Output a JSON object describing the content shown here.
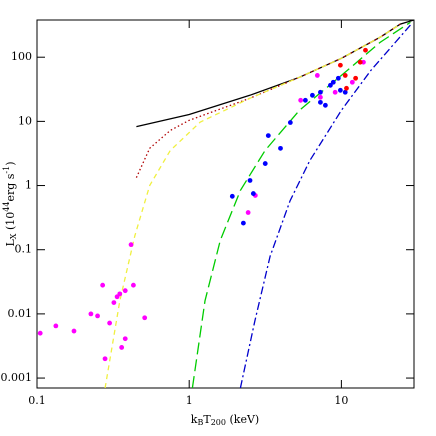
{
  "chart_data": {
    "type": "scatter",
    "xlabel": [
      "k",
      "B",
      "T",
      "200",
      " (keV)"
    ],
    "ylabel": [
      "L",
      "X",
      " (10",
      "44",
      "erg  s",
      "-1",
      ")"
    ],
    "xscale": "log",
    "yscale": "log",
    "xlim": [
      0.1,
      30
    ],
    "ylim": [
      0.0007,
      380
    ],
    "xticks": [
      0.1,
      1,
      10
    ],
    "yticks": [
      0.001,
      0.01,
      0.1,
      1,
      10,
      100
    ],
    "series": [
      {
        "kind": "line",
        "dash": "solid",
        "color": "#000000",
        "x": [
          0.45,
          1,
          2.5,
          5.3,
          10,
          18,
          24.4,
          30
        ],
        "values": [
          8.3,
          12.8,
          25.5,
          48.7,
          96,
          205,
          328,
          380
        ]
      },
      {
        "kind": "line",
        "dash": "dotted",
        "color": "#b00000",
        "x": [
          0.45,
          0.55,
          0.75,
          1,
          2.5,
          5.3,
          10,
          18,
          24.4
        ],
        "values": [
          1.33,
          3.8,
          7.2,
          10.4,
          22.9,
          48.7,
          96,
          205,
          328
        ]
      },
      {
        "kind": "line",
        "dash": "dashed",
        "color": "#f0f040",
        "x": [
          0.28,
          0.35,
          0.44,
          0.55,
          0.75,
          1.18,
          2.5,
          5.3,
          10,
          18,
          24.4
        ],
        "values": [
          0.0007,
          0.0159,
          0.166,
          1,
          3.5,
          9.7,
          22.9,
          48.7,
          96,
          205,
          328
        ]
      },
      {
        "kind": "line",
        "dash": "long-dashed",
        "color": "#00cc00",
        "x": [
          1.05,
          1.27,
          1.6,
          2.17,
          3.15,
          5.3,
          10,
          18,
          28.4
        ],
        "values": [
          0.0007,
          0.016,
          0.14,
          0.84,
          3.5,
          14.9,
          52,
          171,
          350
        ]
      },
      {
        "kind": "line",
        "dash": "dash-dot",
        "color": "#0000cc",
        "x": [
          2.17,
          2.7,
          3.4,
          4.6,
          6.2,
          10,
          15.6,
          28.4
        ],
        "values": [
          0.0007,
          0.0077,
          0.079,
          0.58,
          2.45,
          14.9,
          62,
          316
        ]
      },
      {
        "kind": "points",
        "color": "#ff00ff",
        "x": [
          0.105,
          0.133,
          0.175,
          0.226,
          0.25,
          0.28,
          0.3,
          0.32,
          0.336,
          0.35,
          0.36,
          0.38,
          0.38,
          0.415,
          0.43,
          0.51,
          0.27,
          2.44,
          2.72,
          5.4,
          6.95,
          7.28,
          9.1,
          11.8,
          13.96
        ],
        "values": [
          0.005,
          0.0065,
          0.0054,
          0.01,
          0.0093,
          0.002,
          0.0072,
          0.015,
          0.0185,
          0.0205,
          0.003,
          0.0041,
          0.023,
          0.12,
          0.028,
          0.0087,
          0.028,
          0.38,
          0.7,
          21.3,
          52,
          23.7,
          28.4,
          40.7,
          83.5
        ]
      },
      {
        "kind": "points",
        "color": "#0000ff",
        "x": [
          2.27,
          2.51,
          3.31,
          3.98,
          4.62,
          5.8,
          6.45,
          7.28,
          8.47,
          8.85,
          9.55,
          9.85,
          7.85,
          10.6,
          7.28,
          2.64,
          1.92,
          3.16
        ],
        "values": [
          0.26,
          1.2,
          6.0,
          3.8,
          9.6,
          21.3,
          25.5,
          28.4,
          36.5,
          40.7,
          47,
          30.5,
          17.8,
          28.4,
          19.8,
          0.75,
          0.68,
          2.2
        ]
      },
      {
        "kind": "points",
        "color": "#ff0000",
        "x": [
          10.8,
          12.4,
          10.6,
          13.3,
          14.4,
          9.85
        ],
        "values": [
          32.8,
          47,
          52,
          83.5,
          128.5,
          75
        ]
      }
    ]
  }
}
